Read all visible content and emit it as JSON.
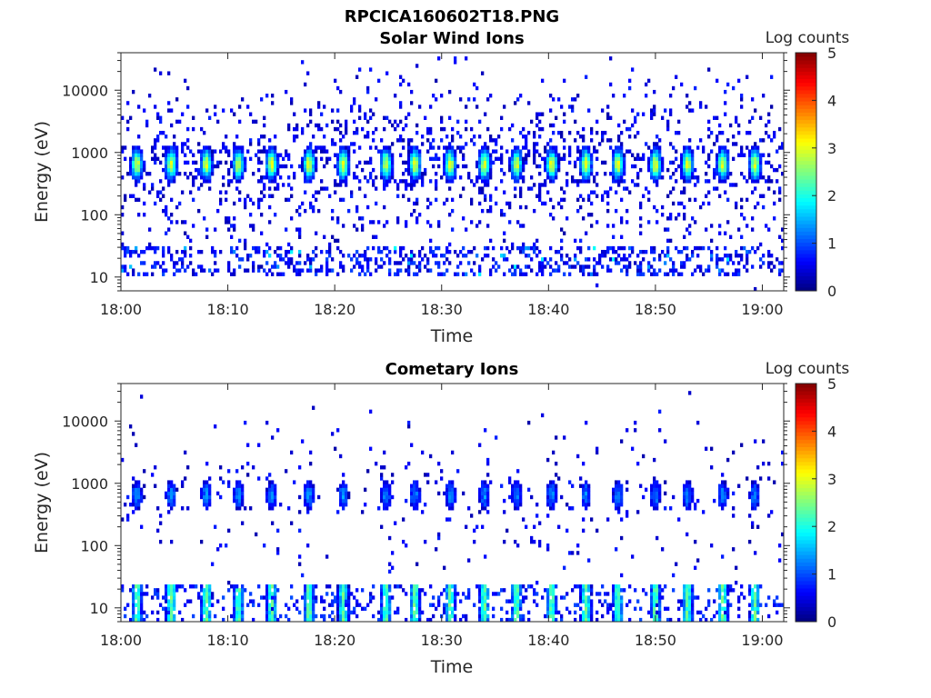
{
  "figure": {
    "title": "RPCICA160602T18.PNG"
  },
  "chart_data": [
    {
      "type": "heatmap",
      "title": "Solar Wind Ions",
      "xlabel": "Time",
      "ylabel": "Energy (eV)",
      "x_ticks": [
        "18:00",
        "18:10",
        "18:20",
        "18:30",
        "18:40",
        "18:50",
        "19:00"
      ],
      "x_range_minutes": [
        0,
        62
      ],
      "y_ticks": [
        10,
        100,
        1000,
        10000
      ],
      "y_tick_labels": [
        "10",
        "100",
        "1000",
        "10000"
      ],
      "y_range_ev": [
        6,
        40000
      ],
      "y_scale": "log",
      "colorbar": {
        "label": "Log counts",
        "ticks": [
          "0",
          "1",
          "2",
          "3",
          "4",
          "5"
        ],
        "range": [
          0,
          5
        ]
      },
      "peak_times_min": [
        1.5,
        4.7,
        8.0,
        11.0,
        14.1,
        17.6,
        20.8,
        24.8,
        27.5,
        30.8,
        34.0,
        37.0,
        40.3,
        43.5,
        46.5,
        50.0,
        53.0,
        56.3,
        59.3
      ],
      "peak_energy_ev": 650,
      "peak_log_counts": 3.0,
      "background_density": 0.2,
      "low_energy_band_ev": [
        10,
        30
      ],
      "seed": 11
    },
    {
      "type": "heatmap",
      "title": "Cometary Ions",
      "xlabel": "Time",
      "ylabel": "Energy (eV)",
      "x_ticks": [
        "18:00",
        "18:10",
        "18:20",
        "18:30",
        "18:40",
        "18:50",
        "19:00"
      ],
      "x_range_minutes": [
        0,
        62
      ],
      "y_ticks": [
        10,
        100,
        1000,
        10000
      ],
      "y_tick_labels": [
        "10",
        "100",
        "1000",
        "10000"
      ],
      "y_range_ev": [
        6,
        40000
      ],
      "y_scale": "log",
      "colorbar": {
        "label": "Log counts",
        "ticks": [
          "0",
          "1",
          "2",
          "3",
          "4",
          "5"
        ],
        "range": [
          0,
          5
        ]
      },
      "peak_times_min": [
        1.5,
        4.7,
        8.0,
        11.0,
        14.1,
        17.6,
        20.8,
        24.8,
        27.5,
        30.8,
        34.0,
        37.0,
        40.3,
        43.5,
        46.5,
        50.0,
        53.0,
        56.3,
        59.3
      ],
      "peak_energy_ev": 650,
      "peak_log_counts": 1.3,
      "background_density": 0.05,
      "low_energy_band_ev": [
        6,
        25
      ],
      "low_energy_peak_log_counts": 2.3,
      "seed": 29
    }
  ]
}
